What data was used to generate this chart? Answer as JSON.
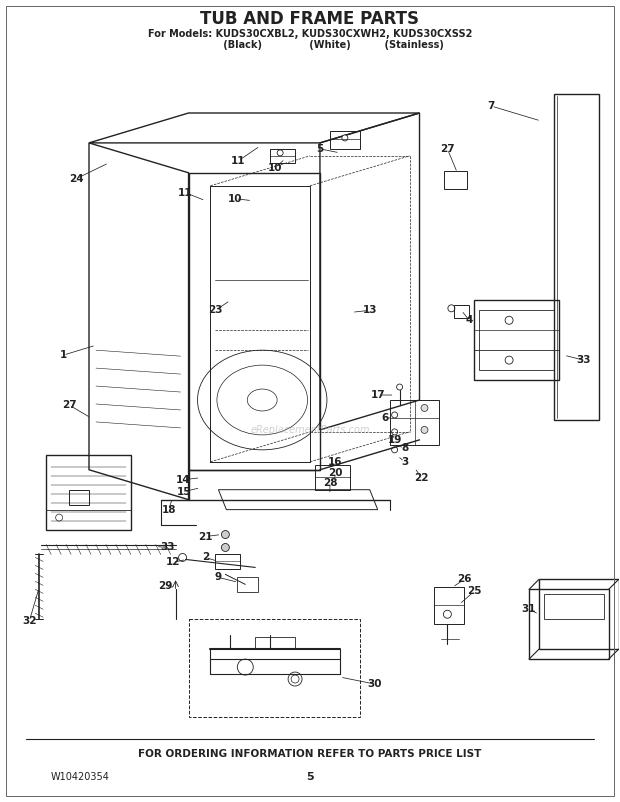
{
  "title": "TUB AND FRAME PARTS",
  "subtitle_line1": "For Models: KUDS30CXBL2, KUDS30CXWH2, KUDS30CXSS2",
  "subtitle_line2": "              (Black)              (White)          (Stainless)",
  "footer_left": "W10420354",
  "footer_center": "5",
  "footer_bottom": "FOR ORDERING INFORMATION REFER TO PARTS PRICE LIST",
  "watermark": "eReplacementParts.com",
  "bg_color": "#ffffff",
  "line_color": "#222222"
}
